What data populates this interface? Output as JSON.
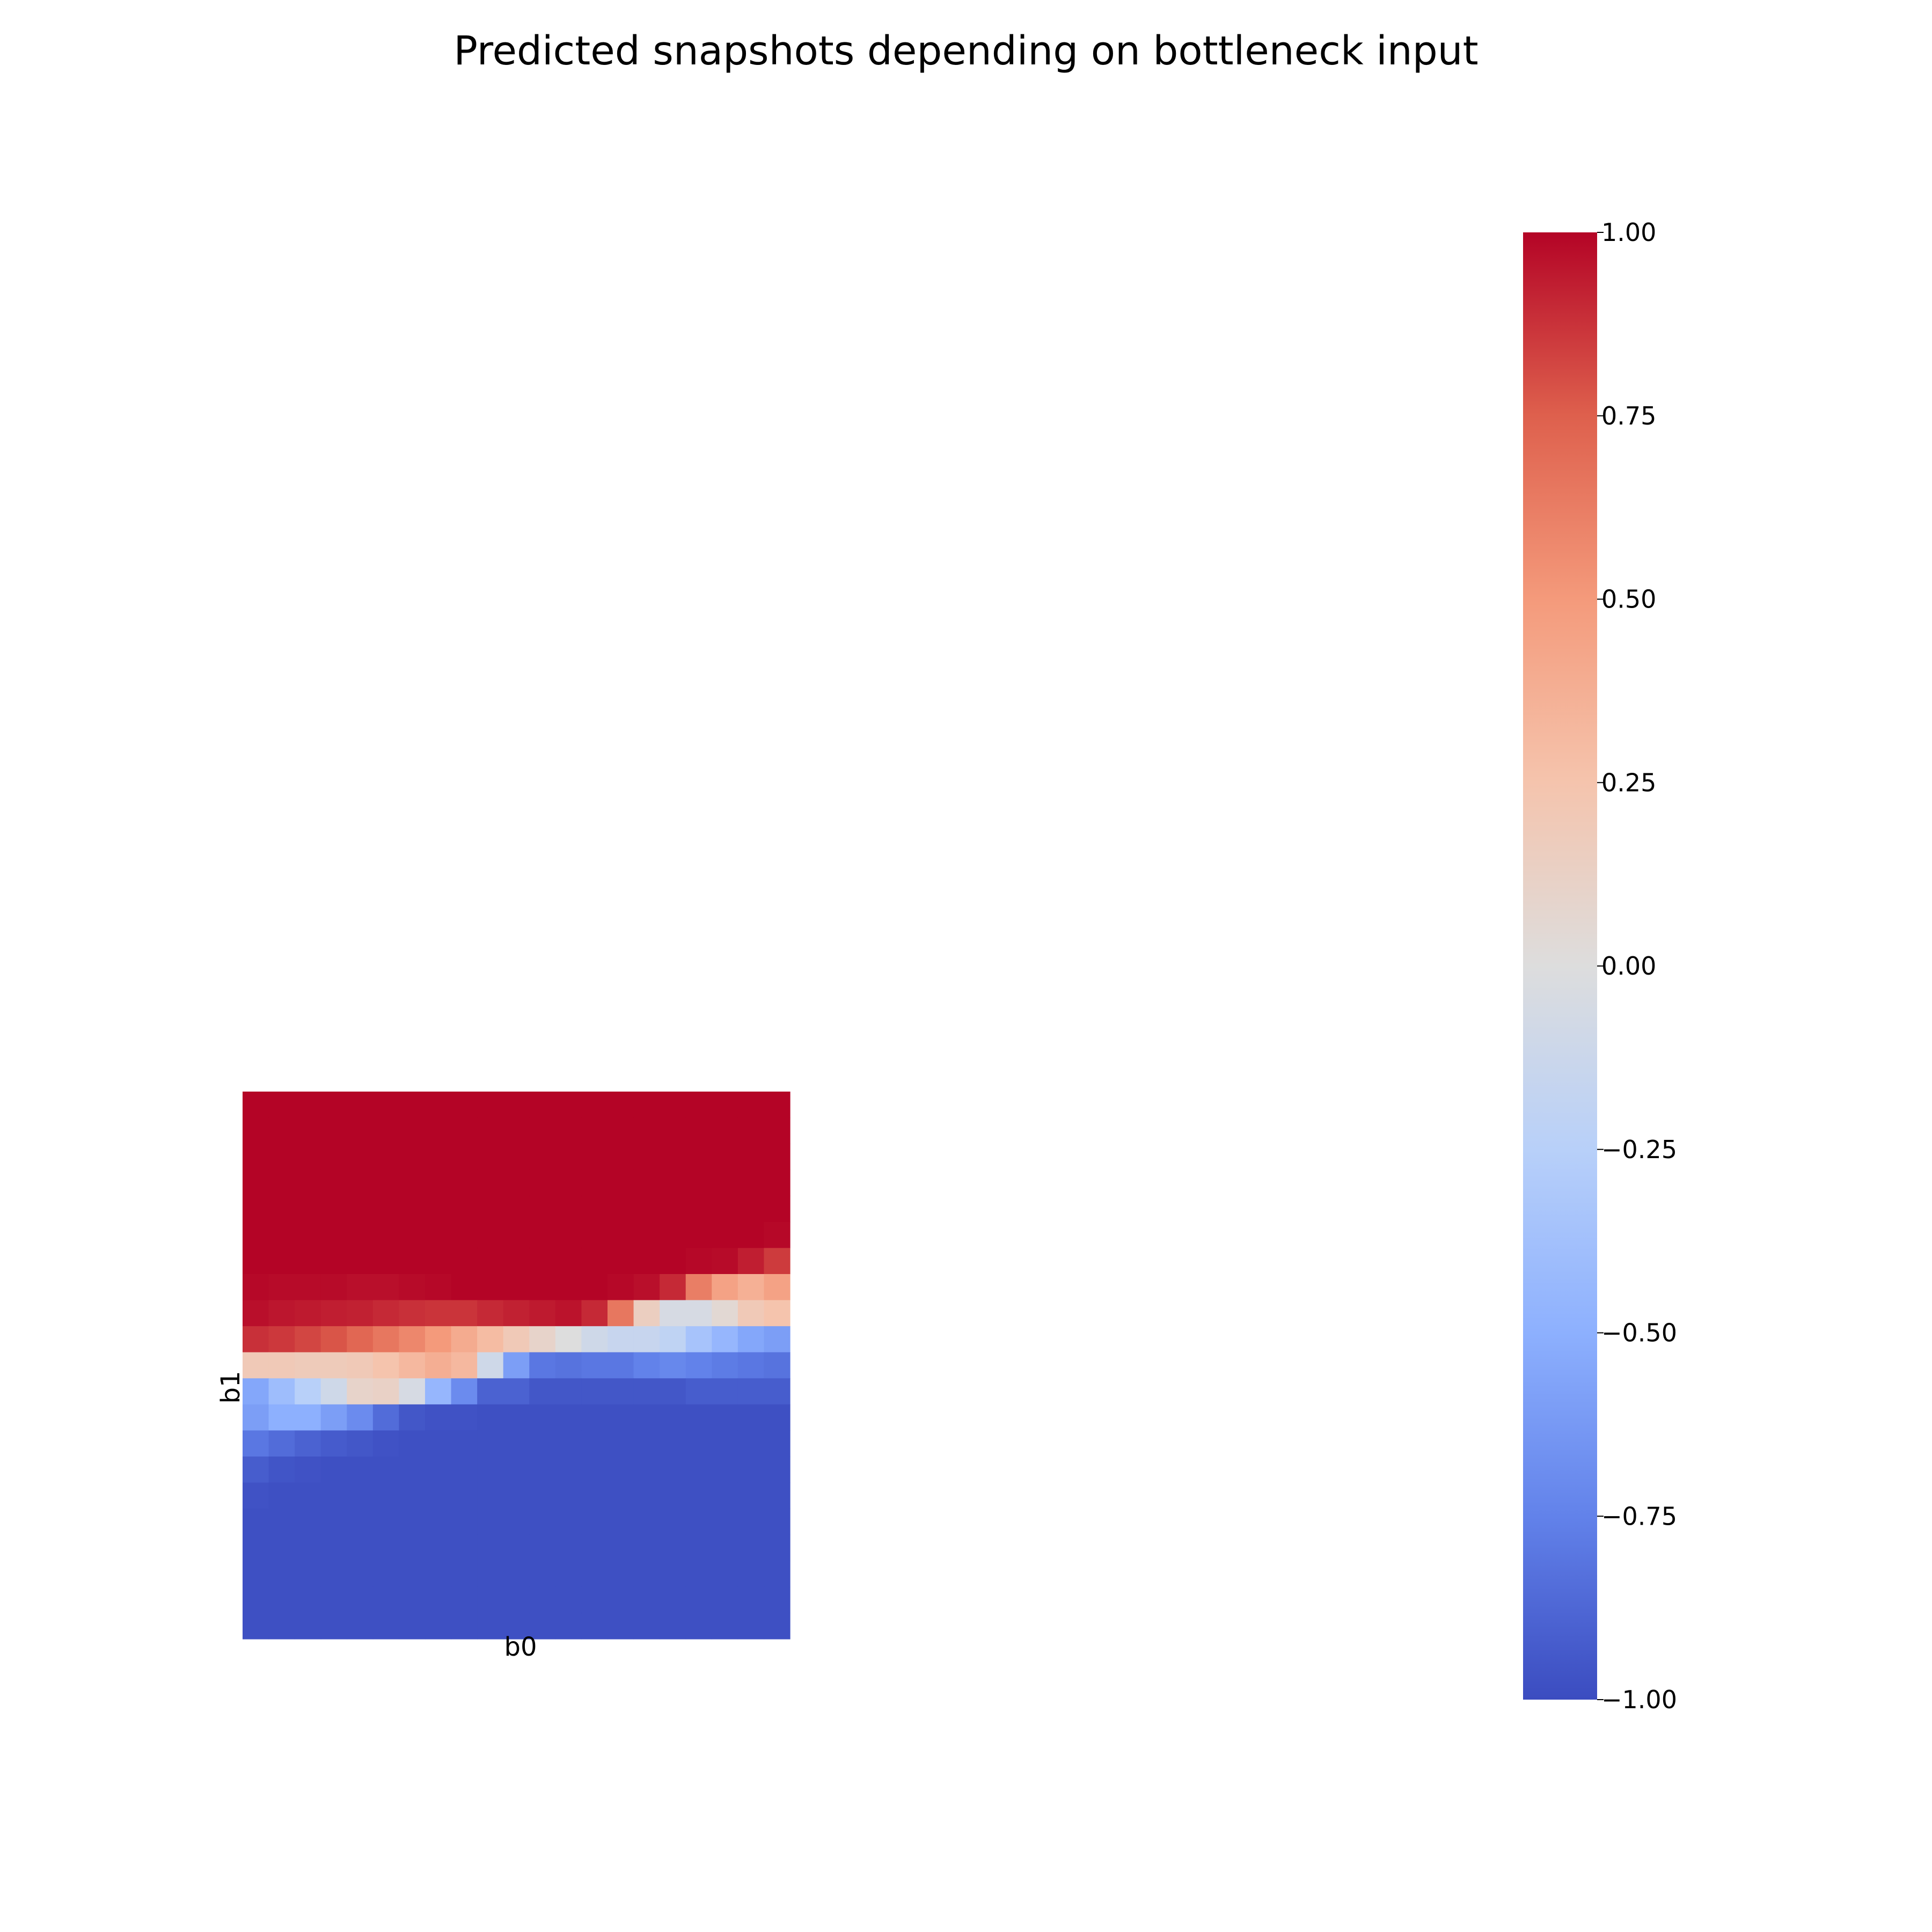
{
  "chart_data": {
    "type": "heatmap",
    "title": "Predicted snapshots depending on bottleneck input",
    "xlabel": "b0",
    "ylabel": "b1",
    "colormap": "coolwarm",
    "vmin": -1.0,
    "vmax": 1.0,
    "colorbar_ticks": [
      "1.00",
      "0.75",
      "0.50",
      "0.25",
      "0.00",
      "−0.25",
      "−0.50",
      "−0.75",
      "−1.00"
    ],
    "colorbar_values": [
      1.0,
      0.75,
      0.5,
      0.25,
      0.0,
      -0.25,
      -0.5,
      -0.75,
      -1.0
    ],
    "grid": false,
    "n_rows": 21,
    "n_cols": 21,
    "rows": [
      [
        1,
        1,
        1,
        1,
        1,
        1,
        1,
        1,
        1,
        1,
        1,
        1,
        1,
        1,
        1,
        1,
        1,
        1,
        1,
        1,
        1
      ],
      [
        1,
        1,
        1,
        1,
        1,
        1,
        1,
        1,
        1,
        1,
        1,
        1,
        1,
        1,
        1,
        1,
        1,
        1,
        1,
        1,
        1
      ],
      [
        1,
        1,
        1,
        1,
        1,
        1,
        1,
        1,
        1,
        1,
        1,
        1,
        1,
        1,
        1,
        1,
        1,
        1,
        1,
        1,
        1
      ],
      [
        1,
        1,
        1,
        1,
        1,
        1,
        1,
        1,
        1,
        1,
        1,
        1,
        1,
        1,
        1,
        1,
        1,
        1,
        1,
        1,
        1
      ],
      [
        1,
        1,
        1,
        1,
        1,
        1,
        1,
        1,
        1,
        1,
        1,
        1,
        1,
        1,
        1,
        1,
        1,
        1,
        1,
        1,
        1
      ],
      [
        1,
        1,
        1,
        1,
        1,
        1,
        1,
        1,
        1,
        1,
        1,
        1,
        1,
        1,
        1,
        1,
        1,
        1,
        1,
        1,
        0.99
      ],
      [
        1,
        1,
        1,
        1,
        1,
        1,
        1,
        1,
        1,
        1,
        1,
        1,
        1,
        1,
        1,
        1,
        1,
        0.99,
        0.98,
        0.93,
        0.85
      ],
      [
        0.99,
        0.98,
        0.98,
        0.98,
        0.97,
        0.97,
        0.98,
        0.99,
        1,
        1,
        1,
        1,
        1,
        1,
        0.99,
        0.97,
        0.9,
        0.62,
        0.45,
        0.37,
        0.45
      ],
      [
        0.97,
        0.95,
        0.94,
        0.93,
        0.92,
        0.9,
        0.88,
        0.87,
        0.87,
        0.9,
        0.92,
        0.94,
        0.96,
        0.9,
        0.65,
        0.15,
        -0.05,
        -0.05,
        0.05,
        0.2,
        0.25
      ],
      [
        0.88,
        0.86,
        0.82,
        0.78,
        0.72,
        0.65,
        0.58,
        0.5,
        0.4,
        0.3,
        0.2,
        0.1,
        0,
        -0.1,
        -0.15,
        -0.15,
        -0.2,
        -0.35,
        -0.45,
        -0.55,
        -0.6
      ],
      [
        0.2,
        0.2,
        0.18,
        0.18,
        0.2,
        0.25,
        0.32,
        0.38,
        0.32,
        -0.1,
        -0.6,
        -0.8,
        -0.82,
        -0.8,
        -0.8,
        -0.75,
        -0.72,
        -0.75,
        -0.78,
        -0.8,
        -0.82
      ],
      [
        -0.55,
        -0.4,
        -0.25,
        -0.1,
        0.1,
        0.12,
        -0.05,
        -0.45,
        -0.7,
        -0.9,
        -0.9,
        -0.95,
        -0.95,
        -0.95,
        -0.95,
        -0.95,
        -0.95,
        -0.92,
        -0.92,
        -0.92,
        -0.92
      ],
      [
        -0.6,
        -0.5,
        -0.5,
        -0.6,
        -0.7,
        -0.85,
        -0.95,
        -0.97,
        -0.97,
        -0.98,
        -0.98,
        -0.98,
        -0.98,
        -0.98,
        -0.98,
        -0.98,
        -0.98,
        -0.98,
        -0.98,
        -0.98,
        -0.98
      ],
      [
        -0.8,
        -0.85,
        -0.9,
        -0.93,
        -0.95,
        -0.97,
        -0.98,
        -0.98,
        -0.98,
        -0.98,
        -0.98,
        -0.98,
        -0.98,
        -0.98,
        -0.98,
        -0.98,
        -0.98,
        -0.98,
        -0.98,
        -0.98,
        -0.98
      ],
      [
        -0.92,
        -0.96,
        -0.97,
        -0.98,
        -0.98,
        -0.98,
        -0.98,
        -0.98,
        -0.98,
        -0.98,
        -0.98,
        -0.98,
        -0.98,
        -0.98,
        -0.98,
        -0.98,
        -0.98,
        -0.98,
        -0.98,
        -0.98,
        -0.98
      ],
      [
        -0.97,
        -0.98,
        -0.98,
        -0.98,
        -0.98,
        -0.98,
        -0.98,
        -0.98,
        -0.98,
        -0.98,
        -0.98,
        -0.98,
        -0.98,
        -0.98,
        -0.98,
        -0.98,
        -0.98,
        -0.98,
        -0.98,
        -0.98,
        -0.98
      ],
      [
        -0.98,
        -0.98,
        -0.98,
        -0.98,
        -0.98,
        -0.98,
        -0.98,
        -0.98,
        -0.98,
        -0.98,
        -0.98,
        -0.98,
        -0.98,
        -0.98,
        -0.98,
        -0.98,
        -0.98,
        -0.98,
        -0.98,
        -0.98,
        -0.98
      ],
      [
        -0.98,
        -0.98,
        -0.98,
        -0.98,
        -0.98,
        -0.98,
        -0.98,
        -0.98,
        -0.98,
        -0.98,
        -0.98,
        -0.98,
        -0.98,
        -0.98,
        -0.98,
        -0.98,
        -0.98,
        -0.98,
        -0.98,
        -0.98,
        -0.98
      ],
      [
        -0.98,
        -0.98,
        -0.98,
        -0.98,
        -0.98,
        -0.98,
        -0.98,
        -0.98,
        -0.98,
        -0.98,
        -0.98,
        -0.98,
        -0.98,
        -0.98,
        -0.98,
        -0.98,
        -0.98,
        -0.98,
        -0.98,
        -0.98,
        -0.98
      ],
      [
        -0.98,
        -0.98,
        -0.98,
        -0.98,
        -0.98,
        -0.98,
        -0.98,
        -0.98,
        -0.98,
        -0.98,
        -0.98,
        -0.98,
        -0.98,
        -0.98,
        -0.98,
        -0.98,
        -0.98,
        -0.98,
        -0.98,
        -0.98,
        -0.98
      ],
      [
        -0.98,
        -0.98,
        -0.98,
        -0.98,
        -0.98,
        -0.98,
        -0.98,
        -0.98,
        -0.98,
        -0.98,
        -0.98,
        -0.98,
        -0.98,
        -0.98,
        -0.98,
        -0.98,
        -0.98,
        -0.98,
        -0.98,
        -0.98,
        -0.98
      ]
    ]
  }
}
